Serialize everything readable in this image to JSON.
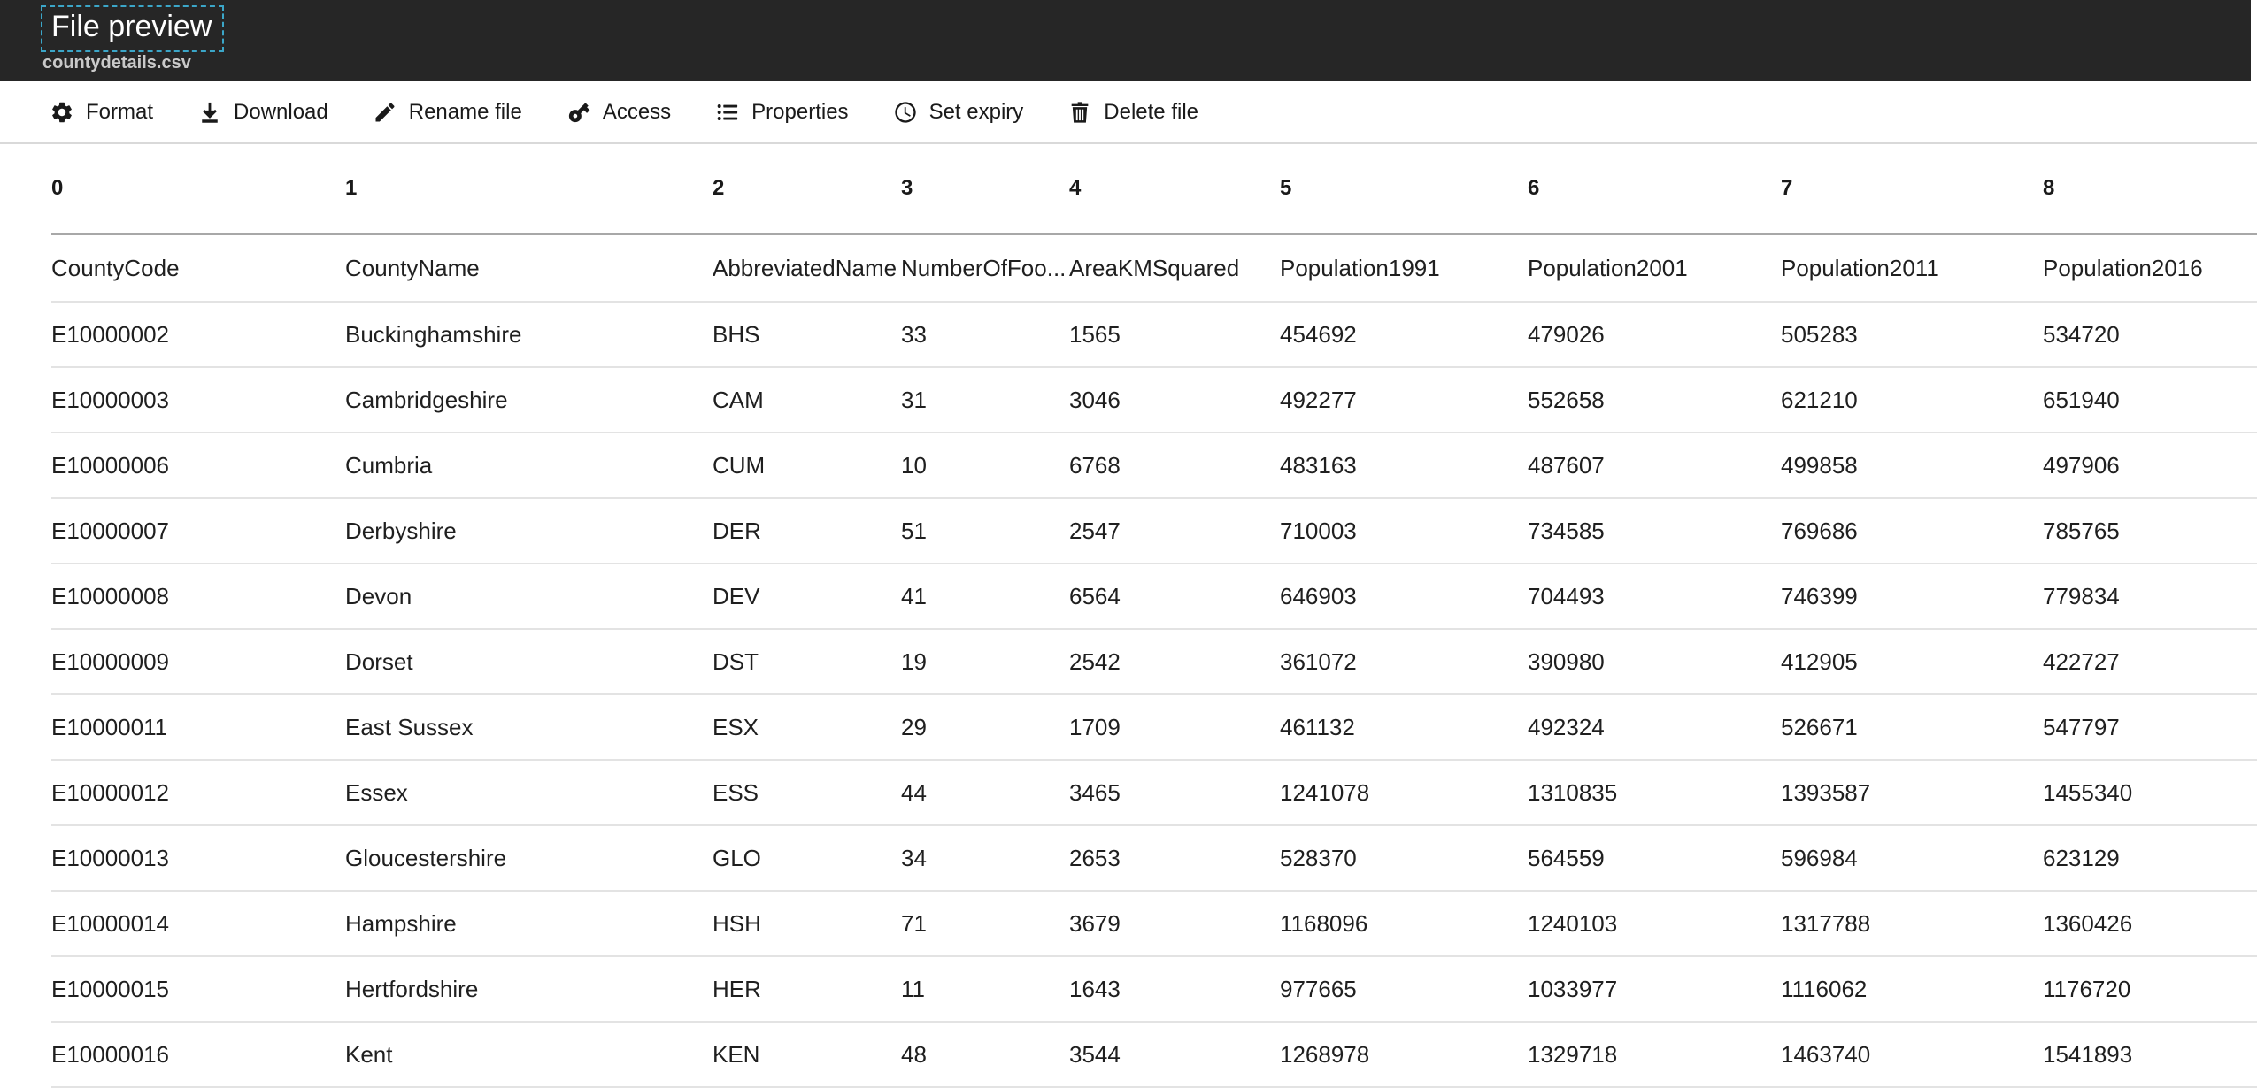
{
  "header": {
    "title": "File preview",
    "filename": "countydetails.csv"
  },
  "toolbar": {
    "items": [
      {
        "label": "Format",
        "icon": "gear-icon"
      },
      {
        "label": "Download",
        "icon": "download-icon"
      },
      {
        "label": "Rename file",
        "icon": "pencil-icon"
      },
      {
        "label": "Access",
        "icon": "key-icon"
      },
      {
        "label": "Properties",
        "icon": "list-icon"
      },
      {
        "label": "Set expiry",
        "icon": "clock-icon"
      },
      {
        "label": "Delete file",
        "icon": "trash-icon"
      }
    ]
  },
  "table": {
    "index_row": [
      "0",
      "1",
      "2",
      "3",
      "4",
      "5",
      "6",
      "7",
      "8"
    ],
    "field_names": [
      "CountyCode",
      "CountyName",
      "AbbreviatedName",
      "NumberOfFoo...",
      "AreaKMSquared",
      "Population1991",
      "Population2001",
      "Population2011",
      "Population2016"
    ],
    "rows": [
      [
        "E10000002",
        "Buckinghamshire",
        "BHS",
        "33",
        "1565",
        "454692",
        "479026",
        "505283",
        "534720"
      ],
      [
        "E10000003",
        "Cambridgeshire",
        "CAM",
        "31",
        "3046",
        "492277",
        "552658",
        "621210",
        "651940"
      ],
      [
        "E10000006",
        "Cumbria",
        "CUM",
        "10",
        "6768",
        "483163",
        "487607",
        "499858",
        "497906"
      ],
      [
        "E10000007",
        "Derbyshire",
        "DER",
        "51",
        "2547",
        "710003",
        "734585",
        "769686",
        "785765"
      ],
      [
        "E10000008",
        "Devon",
        "DEV",
        "41",
        "6564",
        "646903",
        "704493",
        "746399",
        "779834"
      ],
      [
        "E10000009",
        "Dorset",
        "DST",
        "19",
        "2542",
        "361072",
        "390980",
        "412905",
        "422727"
      ],
      [
        "E10000011",
        "East Sussex",
        "ESX",
        "29",
        "1709",
        "461132",
        "492324",
        "526671",
        "547797"
      ],
      [
        "E10000012",
        "Essex",
        "ESS",
        "44",
        "3465",
        "1241078",
        "1310835",
        "1393587",
        "1455340"
      ],
      [
        "E10000013",
        "Gloucestershire",
        "GLO",
        "34",
        "2653",
        "528370",
        "564559",
        "596984",
        "623129"
      ],
      [
        "E10000014",
        "Hampshire",
        "HSH",
        "71",
        "3679",
        "1168096",
        "1240103",
        "1317788",
        "1360426"
      ],
      [
        "E10000015",
        "Hertfordshire",
        "HER",
        "11",
        "1643",
        "977665",
        "1033977",
        "1116062",
        "1176720"
      ],
      [
        "E10000016",
        "Kent",
        "KEN",
        "48",
        "3544",
        "1268978",
        "1329718",
        "1463740",
        "1541893"
      ]
    ]
  },
  "colors": {
    "header_bg": "#262626",
    "focus_outline": "#3ba6c8",
    "title_text": "#ffffff",
    "subtitle_text": "#c9c9c9",
    "toolbar_divider": "#d9d9d9",
    "index_divider": "#a8a8a8",
    "row_divider": "#e3e3e3",
    "body_text": "#1f1f1f"
  }
}
